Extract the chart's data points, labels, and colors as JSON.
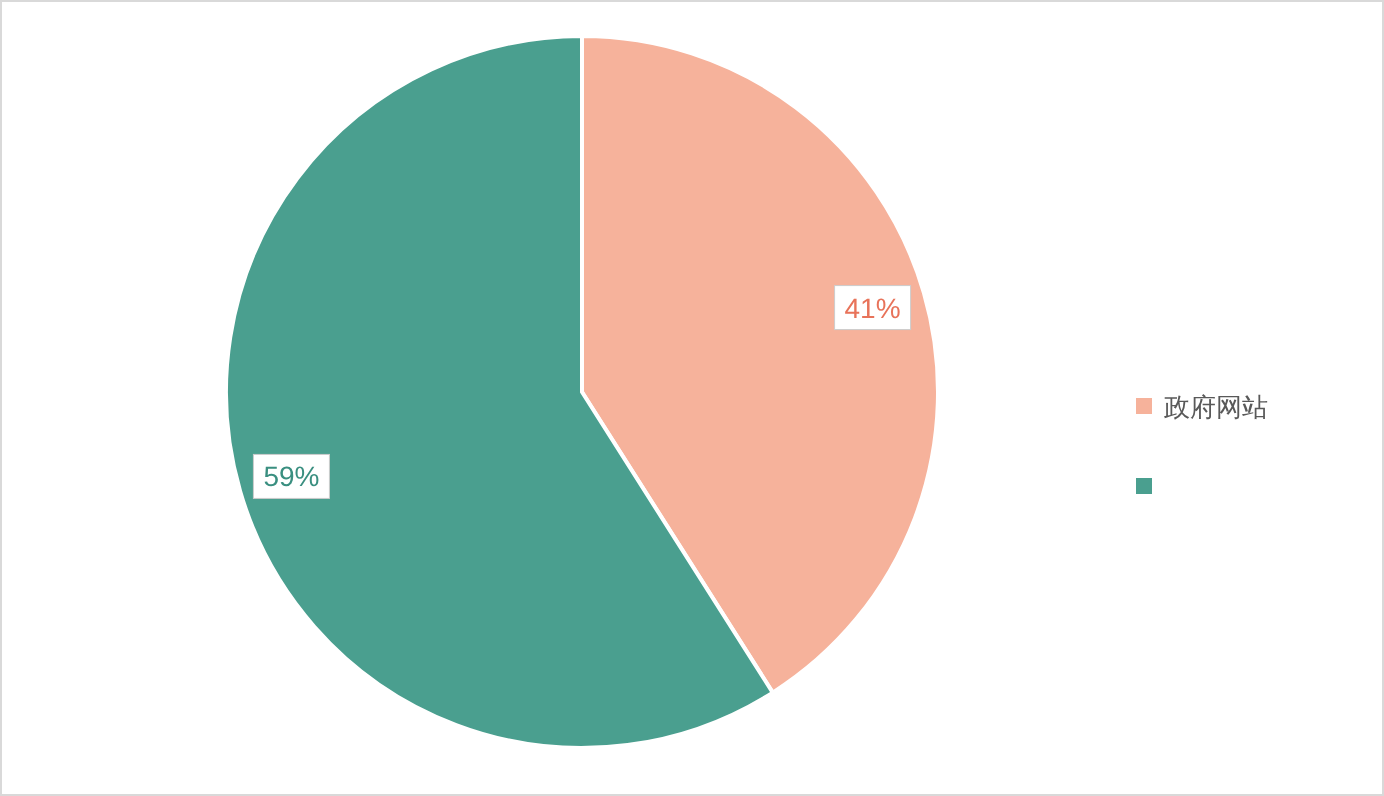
{
  "chart_data": {
    "type": "pie",
    "categories": [
      "政府网站",
      null
    ],
    "values": [
      41,
      59
    ],
    "colors": [
      "#f6b29b",
      "#4a9f8f"
    ],
    "value_labels": [
      "41%",
      "59%"
    ],
    "legend": "right"
  }
}
